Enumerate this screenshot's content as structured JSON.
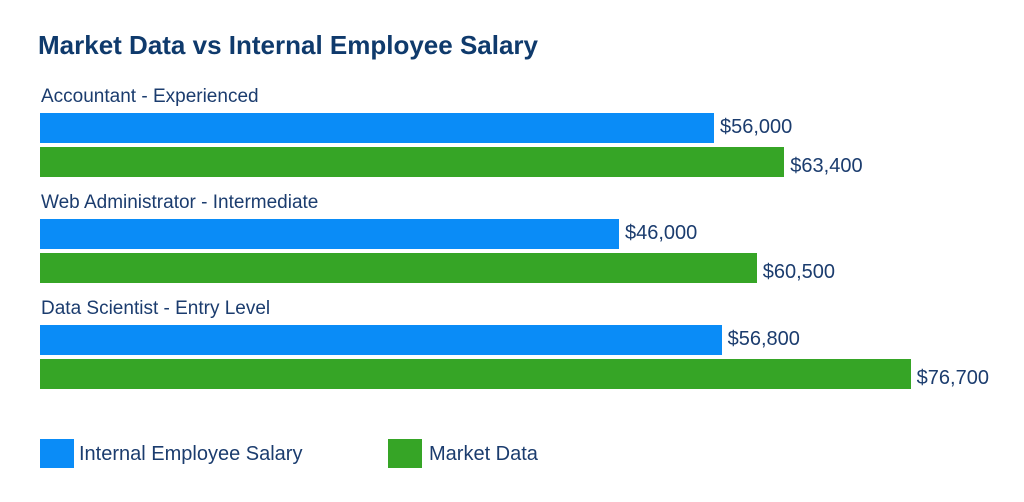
{
  "chart_data": {
    "type": "bar",
    "orientation": "horizontal",
    "title": "Market Data vs Internal Employee Salary",
    "categories": [
      "Accountant - Experienced",
      "Web Administrator - Intermediate",
      "Data Scientist - Entry Level"
    ],
    "series": [
      {
        "name": "Internal Employee Salary",
        "color": "#0a8cf7",
        "values": [
          56000,
          46000,
          56800
        ],
        "labels": [
          "$56,000",
          "$46,000",
          "$56,800"
        ]
      },
      {
        "name": "Market Data",
        "color": "#36a526",
        "values": [
          63400,
          60500,
          76700
        ],
        "labels": [
          "$63,400",
          "$60,500",
          "$76,700"
        ]
      }
    ],
    "legend": "bottom-left",
    "grid": false
  }
}
